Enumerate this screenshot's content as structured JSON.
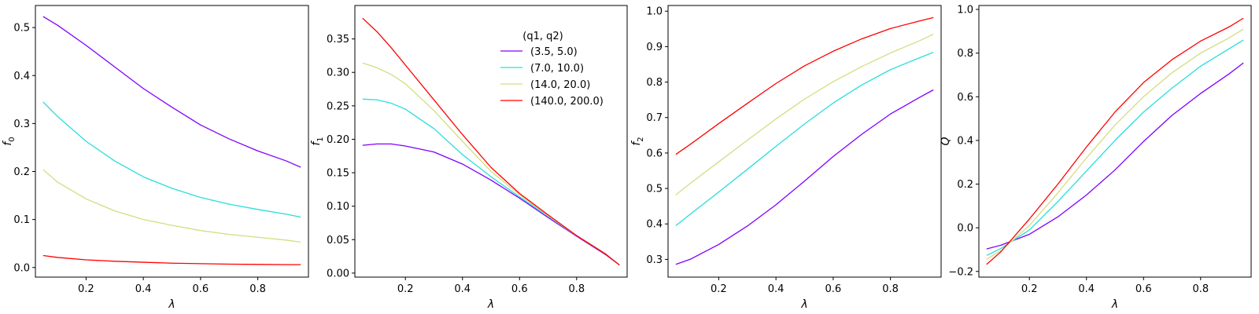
{
  "legend": {
    "title": "(q1, q2)",
    "entries": [
      {
        "label": "(3.5, 5.0)",
        "color": "#8000ff"
      },
      {
        "label": "(7.0, 10.0)",
        "color": "#2adddd"
      },
      {
        "label": "(14.0, 20.0)",
        "color": "#d4dd80"
      },
      {
        "label": "(140.0, 200.0)",
        "color": "#ff0000"
      }
    ]
  },
  "chart_data": [
    {
      "type": "line",
      "xlabel": "λ",
      "ylabel": "f0",
      "xlim": [
        0.023,
        0.977
      ],
      "ylim": [
        -0.02,
        0.546
      ],
      "xticks": [
        0.2,
        0.4,
        0.6,
        0.8
      ],
      "yticks": [
        0.0,
        0.1,
        0.2,
        0.3,
        0.4,
        0.5
      ],
      "ytick_labels": [
        "0.0",
        "0.1",
        "0.2",
        "0.3",
        "0.4",
        "0.5"
      ],
      "grid": false,
      "x": [
        0.05,
        0.1,
        0.2,
        0.3,
        0.4,
        0.5,
        0.6,
        0.7,
        0.8,
        0.9,
        0.95
      ],
      "series": [
        {
          "name": "(3.5, 5.0)",
          "values": [
            0.523,
            0.505,
            0.463,
            0.418,
            0.373,
            0.334,
            0.297,
            0.268,
            0.243,
            0.222,
            0.209
          ]
        },
        {
          "name": "(7.0, 10.0)",
          "values": [
            0.345,
            0.315,
            0.263,
            0.222,
            0.189,
            0.165,
            0.146,
            0.132,
            0.121,
            0.111,
            0.105
          ]
        },
        {
          "name": "(14.0, 20.0)",
          "values": [
            0.204,
            0.178,
            0.143,
            0.118,
            0.1,
            0.088,
            0.077,
            0.069,
            0.063,
            0.057,
            0.053
          ]
        },
        {
          "name": "(140.0, 200.0)",
          "values": [
            0.025,
            0.021,
            0.016,
            0.013,
            0.011,
            0.009,
            0.008,
            0.007,
            0.0065,
            0.006,
            0.006
          ]
        }
      ]
    },
    {
      "type": "line",
      "xlabel": "λ",
      "ylabel": "f1",
      "xlim": [
        0.023,
        0.977
      ],
      "ylim": [
        -0.006,
        0.4
      ],
      "xticks": [
        0.2,
        0.4,
        0.6,
        0.8
      ],
      "yticks": [
        0.0,
        0.05,
        0.1,
        0.15,
        0.2,
        0.25,
        0.3,
        0.35
      ],
      "ytick_labels": [
        "0.00",
        "0.05",
        "0.10",
        "0.15",
        "0.20",
        "0.25",
        "0.30",
        "0.35"
      ],
      "grid": false,
      "legend_position": "upper-right",
      "x": [
        0.05,
        0.1,
        0.15,
        0.2,
        0.3,
        0.4,
        0.5,
        0.6,
        0.7,
        0.8,
        0.9,
        0.95
      ],
      "series": [
        {
          "name": "(3.5, 5.0)",
          "values": [
            0.191,
            0.193,
            0.193,
            0.19,
            0.181,
            0.163,
            0.139,
            0.112,
            0.083,
            0.055,
            0.028,
            0.012
          ]
        },
        {
          "name": "(7.0, 10.0)",
          "values": [
            0.26,
            0.259,
            0.254,
            0.245,
            0.216,
            0.177,
            0.144,
            0.114,
            0.085,
            0.056,
            0.029,
            0.012
          ]
        },
        {
          "name": "(14.0, 20.0)",
          "values": [
            0.314,
            0.307,
            0.297,
            0.283,
            0.243,
            0.197,
            0.152,
            0.117,
            0.086,
            0.056,
            0.029,
            0.012
          ]
        },
        {
          "name": "(140.0, 200.0)",
          "values": [
            0.381,
            0.361,
            0.337,
            0.311,
            0.259,
            0.207,
            0.158,
            0.119,
            0.087,
            0.056,
            0.029,
            0.012
          ]
        }
      ]
    },
    {
      "type": "line",
      "xlabel": "λ",
      "ylabel": "f2",
      "xlim": [
        0.023,
        0.977
      ],
      "ylim": [
        0.25,
        1.016
      ],
      "xticks": [
        0.2,
        0.4,
        0.6,
        0.8
      ],
      "yticks": [
        0.3,
        0.4,
        0.5,
        0.6,
        0.7,
        0.8,
        0.9,
        1.0
      ],
      "ytick_labels": [
        "0.3",
        "0.4",
        "0.5",
        "0.6",
        "0.7",
        "0.8",
        "0.9",
        "1.0"
      ],
      "grid": false,
      "x": [
        0.05,
        0.1,
        0.2,
        0.3,
        0.4,
        0.5,
        0.6,
        0.7,
        0.8,
        0.9,
        0.95
      ],
      "series": [
        {
          "name": "(3.5, 5.0)",
          "values": [
            0.286,
            0.3,
            0.342,
            0.394,
            0.454,
            0.521,
            0.59,
            0.653,
            0.71,
            0.756,
            0.778
          ]
        },
        {
          "name": "(7.0, 10.0)",
          "values": [
            0.395,
            0.427,
            0.49,
            0.554,
            0.619,
            0.682,
            0.741,
            0.792,
            0.835,
            0.868,
            0.884
          ]
        },
        {
          "name": "(14.0, 20.0)",
          "values": [
            0.482,
            0.514,
            0.575,
            0.636,
            0.696,
            0.752,
            0.801,
            0.844,
            0.882,
            0.916,
            0.935
          ]
        },
        {
          "name": "(140.0, 200.0)",
          "values": [
            0.596,
            0.624,
            0.683,
            0.74,
            0.796,
            0.846,
            0.887,
            0.922,
            0.951,
            0.972,
            0.982
          ]
        }
      ]
    },
    {
      "type": "line",
      "xlabel": "λ",
      "ylabel": "Q",
      "xlim": [
        0.023,
        0.977
      ],
      "ylim": [
        -0.226,
        1.018
      ],
      "xticks": [
        0.2,
        0.4,
        0.6,
        0.8
      ],
      "yticks": [
        -0.2,
        0.0,
        0.2,
        0.4,
        0.6,
        0.8,
        1.0
      ],
      "ytick_labels": [
        "−0.2",
        "0.0",
        "0.2",
        "0.4",
        "0.6",
        "0.8",
        "1.0"
      ],
      "grid": false,
      "x": [
        0.05,
        0.1,
        0.2,
        0.3,
        0.4,
        0.5,
        0.6,
        0.7,
        0.8,
        0.9,
        0.95
      ],
      "series": [
        {
          "name": "(3.5, 5.0)",
          "values": [
            -0.097,
            -0.08,
            -0.03,
            0.05,
            0.15,
            0.265,
            0.395,
            0.515,
            0.615,
            0.705,
            0.755
          ]
        },
        {
          "name": "(7.0, 10.0)",
          "values": [
            -0.127,
            -0.095,
            -0.01,
            0.12,
            0.26,
            0.4,
            0.53,
            0.64,
            0.74,
            0.82,
            0.86
          ]
        },
        {
          "name": "(14.0, 20.0)",
          "values": [
            -0.145,
            -0.105,
            0.01,
            0.16,
            0.32,
            0.47,
            0.6,
            0.71,
            0.8,
            0.87,
            0.91
          ]
        },
        {
          "name": "(140.0, 200.0)",
          "values": [
            -0.168,
            -0.11,
            0.04,
            0.2,
            0.37,
            0.53,
            0.665,
            0.77,
            0.855,
            0.92,
            0.96
          ]
        }
      ]
    }
  ]
}
